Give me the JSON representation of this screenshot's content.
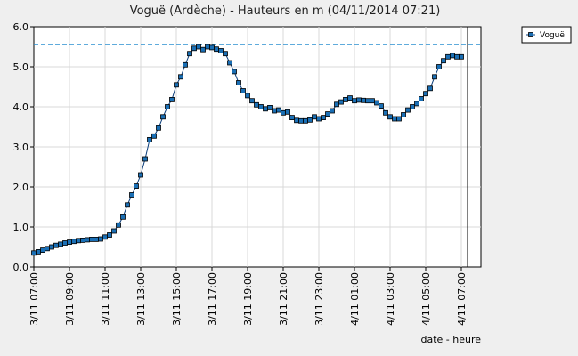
{
  "chart_data": {
    "type": "line",
    "title": "Voguë (Ardèche) - Hauteurs en m (04/11/2014 07:21)",
    "xlabel": "date - heure",
    "ylabel": "",
    "ylim": [
      0,
      6
    ],
    "yticks": [
      "0.0",
      "1.0",
      "2.0",
      "3.0",
      "4.0",
      "5.0",
      "6.0"
    ],
    "xticks": [
      "3/11 07:00",
      "3/11 09:00",
      "3/11 11:00",
      "3/11 13:00",
      "3/11 15:00",
      "3/11 17:00",
      "3/11 19:00",
      "3/11 21:00",
      "3/11 23:00",
      "4/11 01:00",
      "4/11 03:00",
      "4/11 05:00",
      "4/11 07:00"
    ],
    "xtick_hours": [
      7,
      9,
      11,
      13,
      15,
      17,
      19,
      21,
      23,
      25,
      27,
      29,
      31
    ],
    "x_axis_start_hour": 7,
    "x_axis_end_hour": 32.1,
    "threshold_line": 5.55,
    "current_time_hour": 31.35,
    "grid": true,
    "legend_position": "top-right",
    "series": [
      {
        "name": "Voguë",
        "color": "#1a6fb5",
        "x": [
          7.0,
          7.25,
          7.5,
          7.75,
          8.0,
          8.25,
          8.5,
          8.75,
          9.0,
          9.25,
          9.5,
          9.75,
          10.0,
          10.25,
          10.5,
          10.75,
          11.0,
          11.25,
          11.5,
          11.75,
          12.0,
          12.25,
          12.5,
          12.75,
          13.0,
          13.25,
          13.5,
          13.75,
          14.0,
          14.25,
          14.5,
          14.75,
          15.0,
          15.25,
          15.5,
          15.75,
          16.0,
          16.25,
          16.5,
          16.75,
          17.0,
          17.25,
          17.5,
          17.75,
          18.0,
          18.25,
          18.5,
          18.75,
          19.0,
          19.25,
          19.5,
          19.75,
          20.0,
          20.25,
          20.5,
          20.75,
          21.0,
          21.25,
          21.5,
          21.75,
          22.0,
          22.25,
          22.5,
          22.75,
          23.0,
          23.25,
          23.5,
          23.75,
          24.0,
          24.25,
          24.5,
          24.75,
          25.0,
          25.25,
          25.5,
          25.75,
          26.0,
          26.25,
          26.5,
          26.75,
          27.0,
          27.25,
          27.5,
          27.75,
          28.0,
          28.25,
          28.5,
          28.75,
          29.0,
          29.25,
          29.5,
          29.75,
          30.0,
          30.25,
          30.5,
          30.75,
          31.0
        ],
        "values": [
          0.35,
          0.38,
          0.42,
          0.46,
          0.5,
          0.54,
          0.57,
          0.6,
          0.62,
          0.64,
          0.66,
          0.67,
          0.68,
          0.69,
          0.69,
          0.7,
          0.75,
          0.8,
          0.9,
          1.05,
          1.25,
          1.55,
          1.8,
          2.02,
          2.3,
          2.7,
          3.18,
          3.27,
          3.47,
          3.75,
          4.0,
          4.18,
          4.55,
          4.75,
          5.05,
          5.33,
          5.46,
          5.5,
          5.43,
          5.5,
          5.48,
          5.44,
          5.4,
          5.33,
          5.1,
          4.88,
          4.6,
          4.4,
          4.28,
          4.15,
          4.05,
          4.0,
          3.95,
          3.98,
          3.9,
          3.92,
          3.85,
          3.87,
          3.73,
          3.66,
          3.65,
          3.65,
          3.67,
          3.75,
          3.7,
          3.73,
          3.82,
          3.9,
          4.06,
          4.12,
          4.18,
          4.22,
          4.15,
          4.17,
          4.16,
          4.15,
          4.15,
          4.1,
          4.02,
          3.85,
          3.75,
          3.7,
          3.7,
          3.8,
          3.92,
          4.0,
          4.08,
          4.2,
          4.33,
          4.46,
          4.75,
          5.0,
          5.15,
          5.25,
          5.28,
          5.25,
          5.25
        ]
      }
    ]
  }
}
